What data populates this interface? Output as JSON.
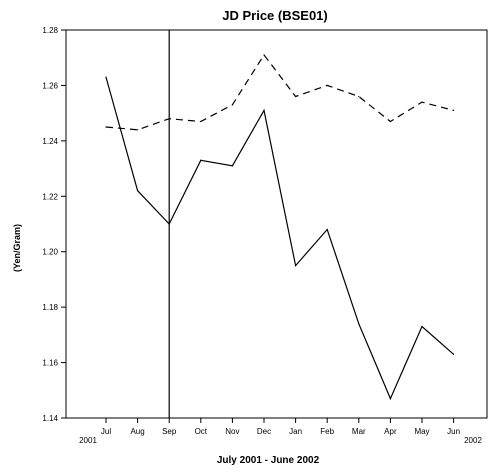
{
  "chart_data": {
    "type": "line",
    "title": "JD Price (BSE01)",
    "xlabel": "July 2001 - June 2002",
    "ylabel": "(Yen/Gram)",
    "categories": [
      "Jul",
      "Aug",
      "Sep",
      "Oct",
      "Nov",
      "Dec",
      "Jan",
      "Feb",
      "Mar",
      "Apr",
      "May",
      "Jun"
    ],
    "year_labels": {
      "start": "2001",
      "end": "2002"
    },
    "ylim": [
      1.14,
      1.28
    ],
    "yticks": [
      "1.14",
      "1.16",
      "1.18",
      "1.20",
      "1.22",
      "1.24",
      "1.26",
      "1.28"
    ],
    "grid": false,
    "legend": "none",
    "reference_line_category": "Sep",
    "series": [
      {
        "style": "solid",
        "color": "#000000",
        "values": [
          1.263,
          1.222,
          1.21,
          1.233,
          1.231,
          1.251,
          1.195,
          1.208,
          1.174,
          1.147,
          1.173,
          1.163
        ]
      },
      {
        "style": "dashed",
        "color": "#000000",
        "values": [
          1.245,
          1.244,
          1.248,
          1.247,
          1.253,
          1.271,
          1.256,
          1.26,
          1.256,
          1.247,
          1.254,
          1.251
        ]
      }
    ]
  }
}
